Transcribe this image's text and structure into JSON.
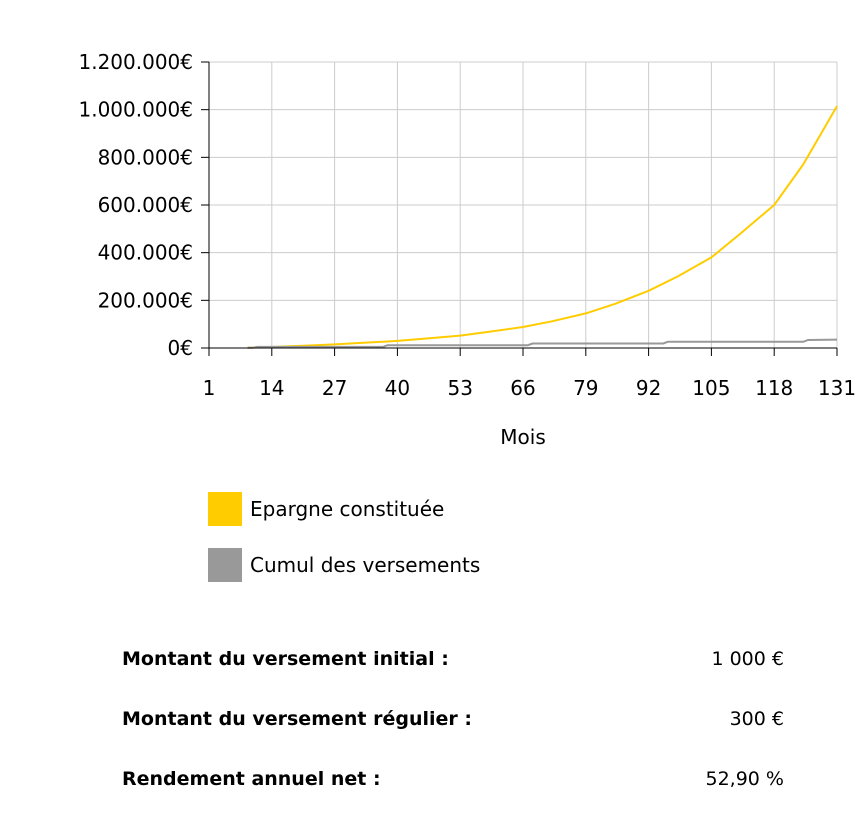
{
  "chart_data": {
    "type": "line",
    "xlabel": "Mois",
    "ylabel": "",
    "x_ticks": [
      1,
      14,
      27,
      40,
      53,
      66,
      79,
      92,
      105,
      118,
      131
    ],
    "x_range": [
      1,
      131
    ],
    "y_ticks": [
      0,
      200000,
      400000,
      600000,
      800000,
      1000000,
      1200000
    ],
    "y_tick_labels": [
      "0€",
      "200.000€",
      "400.000€",
      "600.000€",
      "800.000€",
      "1.000.000€",
      "1.200.000€"
    ],
    "ylim": [
      0,
      1200000
    ],
    "grid": true,
    "legend_position": "bottom",
    "series": [
      {
        "name": "Epargne constituée",
        "color": "#ffcc00",
        "x": [
          9,
          14,
          20,
          27,
          33,
          40,
          46,
          53,
          59,
          66,
          72,
          79,
          85,
          92,
          98,
          105,
          111,
          118,
          124,
          131
        ],
        "values": [
          1000,
          4000,
          9000,
          15000,
          22000,
          30000,
          40000,
          52000,
          68000,
          88000,
          112000,
          145000,
          185000,
          240000,
          300000,
          380000,
          480000,
          600000,
          770000,
          1015000
        ]
      },
      {
        "name": "Cumul des versements",
        "color": "#999999",
        "x": [
          9,
          10,
          11,
          37,
          38,
          67,
          68,
          95,
          96,
          124,
          125,
          131
        ],
        "values": [
          1000,
          1000,
          4600,
          4600,
          11800,
          11800,
          19000,
          19000,
          26200,
          26200,
          33400,
          35200
        ]
      }
    ]
  },
  "summary": {
    "initial_label": "Montant du versement initial :",
    "initial_value": "1 000 €",
    "regular_label": "Montant du versement régulier :",
    "regular_value": "300 €",
    "yield_label": "Rendement annuel net :",
    "yield_value": "52,90 %"
  }
}
